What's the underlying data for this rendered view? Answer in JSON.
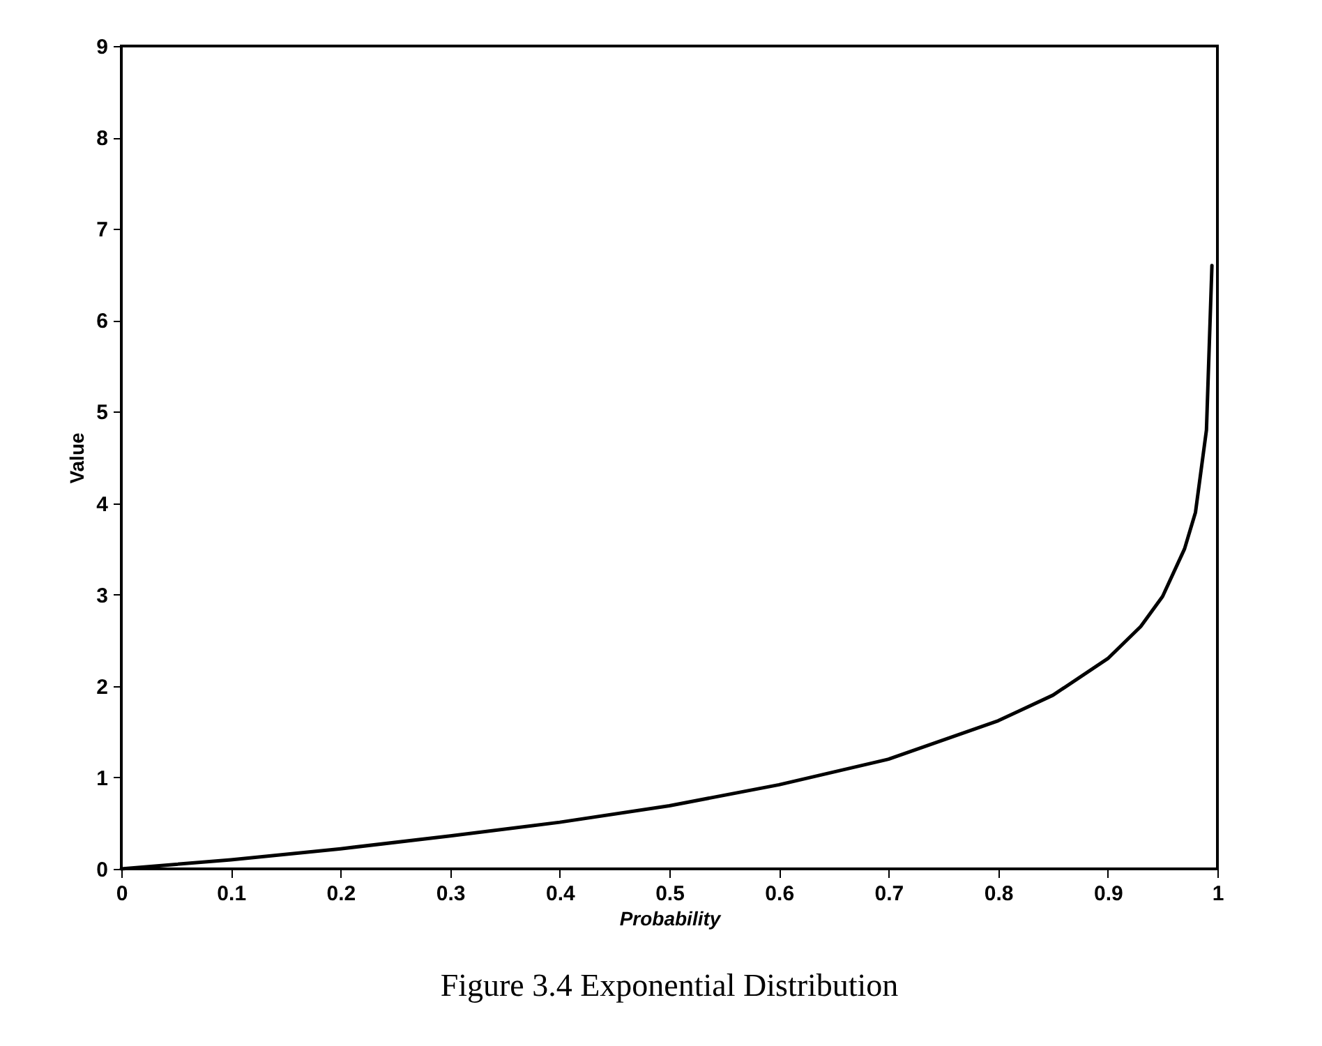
{
  "chart_data": {
    "type": "line",
    "xlabel": "Probability",
    "ylabel": "Value",
    "annotations": [
      "Figure 3.4  Exponential Distribution"
    ],
    "x": [
      0,
      0.05,
      0.1,
      0.2,
      0.3,
      0.4,
      0.5,
      0.6,
      0.7,
      0.8,
      0.85,
      0.9,
      0.93,
      0.95,
      0.97,
      0.98,
      0.99,
      0.995
    ],
    "series": [
      {
        "color": "#000000",
        "values": [
          0,
          0.05,
          0.1,
          0.22,
          0.36,
          0.51,
          0.69,
          0.92,
          1.2,
          1.62,
          1.9,
          2.3,
          2.65,
          2.98,
          3.5,
          3.9,
          4.8,
          6.6
        ]
      }
    ],
    "xlim": [
      0,
      1
    ],
    "xticks": [
      0,
      0.1,
      0.2,
      0.3,
      0.4,
      0.5,
      0.6,
      0.7,
      0.8,
      0.9,
      1
    ],
    "ylim": [
      0,
      9
    ],
    "yticks": [
      0,
      1,
      2,
      3,
      4,
      5,
      6,
      7,
      8,
      9
    ],
    "grid": false,
    "legend": false,
    "marker": "none",
    "line_style": "solid"
  }
}
